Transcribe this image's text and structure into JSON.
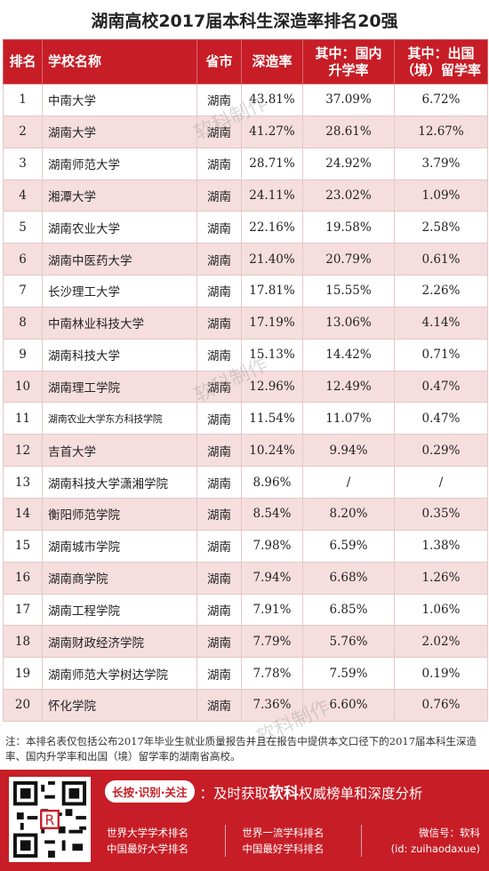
{
  "title": "湖南高校2017届本科生深造率排名20强",
  "headers": {
    "rank": "排名",
    "school": "学校名称",
    "province": "省市",
    "rate": "深造率",
    "domestic_l1": "其中：国内",
    "domestic_l2": "升学率",
    "abroad_l1": "其中：出国",
    "abroad_l2": "（境）留学率"
  },
  "rows": [
    {
      "rank": "1",
      "school": "中南大学",
      "province": "湖南",
      "rate": "43.81%",
      "domestic": "37.09%",
      "abroad": "6.72%"
    },
    {
      "rank": "2",
      "school": "湖南大学",
      "province": "湖南",
      "rate": "41.27%",
      "domestic": "28.61%",
      "abroad": "12.67%"
    },
    {
      "rank": "3",
      "school": "湖南师范大学",
      "province": "湖南",
      "rate": "28.71%",
      "domestic": "24.92%",
      "abroad": "3.79%"
    },
    {
      "rank": "4",
      "school": "湘潭大学",
      "province": "湖南",
      "rate": "24.11%",
      "domestic": "23.02%",
      "abroad": "1.09%"
    },
    {
      "rank": "5",
      "school": "湖南农业大学",
      "province": "湖南",
      "rate": "22.16%",
      "domestic": "19.58%",
      "abroad": "2.58%"
    },
    {
      "rank": "6",
      "school": "湖南中医药大学",
      "province": "湖南",
      "rate": "21.40%",
      "domestic": "20.79%",
      "abroad": "0.61%"
    },
    {
      "rank": "7",
      "school": "长沙理工大学",
      "province": "湖南",
      "rate": "17.81%",
      "domestic": "15.55%",
      "abroad": "2.26%"
    },
    {
      "rank": "8",
      "school": "中南林业科技大学",
      "province": "湖南",
      "rate": "17.19%",
      "domestic": "13.06%",
      "abroad": "4.14%"
    },
    {
      "rank": "9",
      "school": "湖南科技大学",
      "province": "湖南",
      "rate": "15.13%",
      "domestic": "14.42%",
      "abroad": "0.71%"
    },
    {
      "rank": "10",
      "school": "湖南理工学院",
      "province": "湖南",
      "rate": "12.96%",
      "domestic": "12.49%",
      "abroad": "0.47%"
    },
    {
      "rank": "11",
      "school": "湖南农业大学东方科技学院",
      "province": "湖南",
      "rate": "11.54%",
      "domestic": "11.07%",
      "abroad": "0.47%"
    },
    {
      "rank": "12",
      "school": "吉首大学",
      "province": "湖南",
      "rate": "10.24%",
      "domestic": "9.94%",
      "abroad": "0.29%"
    },
    {
      "rank": "13",
      "school": "湖南科技大学潇湘学院",
      "province": "湖南",
      "rate": "8.96%",
      "domestic": "/",
      "abroad": "/"
    },
    {
      "rank": "14",
      "school": "衡阳师范学院",
      "province": "湖南",
      "rate": "8.54%",
      "domestic": "8.20%",
      "abroad": "0.35%"
    },
    {
      "rank": "15",
      "school": "湖南城市学院",
      "province": "湖南",
      "rate": "7.98%",
      "domestic": "6.59%",
      "abroad": "1.38%"
    },
    {
      "rank": "16",
      "school": "湖南商学院",
      "province": "湖南",
      "rate": "7.94%",
      "domestic": "6.68%",
      "abroad": "1.26%"
    },
    {
      "rank": "17",
      "school": "湖南工程学院",
      "province": "湖南",
      "rate": "7.91%",
      "domestic": "6.85%",
      "abroad": "1.06%"
    },
    {
      "rank": "18",
      "school": "湖南财政经济学院",
      "province": "湖南",
      "rate": "7.79%",
      "domestic": "5.76%",
      "abroad": "2.02%"
    },
    {
      "rank": "19",
      "school": "湖南师范大学树达学院",
      "province": "湖南",
      "rate": "7.78%",
      "domestic": "7.59%",
      "abroad": "0.19%"
    },
    {
      "rank": "20",
      "school": "怀化学院",
      "province": "湖南",
      "rate": "7.36%",
      "domestic": "6.60%",
      "abroad": "0.76%"
    }
  ],
  "watermark": "软科制作",
  "note": "注：本排名表仅包括公布2017年毕业生就业质量报告并且在报告中提供本文口径下的2017届本科生深造率、国内升学率和出国（境）留学率的湖南省高校。",
  "footer": {
    "pill": "长按·识别·关注",
    "slogan_pre": "：及时获取",
    "slogan_brand": "软科",
    "slogan_post": "权威榜单和深度分析",
    "link1": "世界大学学术排名",
    "link2": "中国最好大学排名",
    "link3": "世界一流学科排名",
    "link4": "中国最好学科排名",
    "wechat_label": "微信号：软科",
    "wechat_id": "(id: zuihaodaxue)"
  },
  "colors": {
    "accent": "#c71d26",
    "row_alt": "#f6dede"
  }
}
